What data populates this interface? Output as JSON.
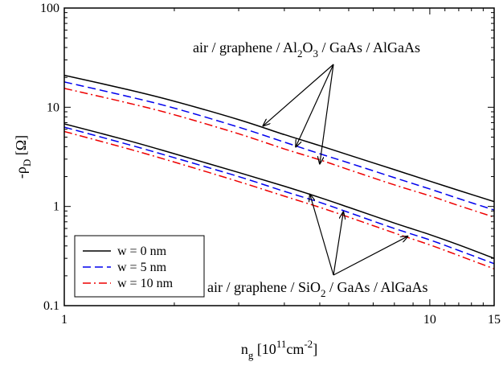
{
  "chart_data": {
    "type": "line",
    "x_scale": "log",
    "y_scale": "log",
    "xlim": [
      1,
      15
    ],
    "ylim": [
      0.1,
      100
    ],
    "x_ticks": [
      {
        "value": 1,
        "label": "1"
      },
      {
        "value": 10,
        "label": "10"
      },
      {
        "value": 15,
        "label": "15"
      }
    ],
    "y_ticks": [
      {
        "value": 0.1,
        "label": "0.1"
      },
      {
        "value": 1,
        "label": "1"
      },
      {
        "value": 10,
        "label": "10"
      },
      {
        "value": 100,
        "label": "100"
      }
    ],
    "xlabel": {
      "base": "n",
      "sub": "g",
      "mid": " [10",
      "sup1": "11",
      "mid2": "cm",
      "sup2": "-2",
      "end": "]"
    },
    "ylabel": {
      "base": "-ρ",
      "sub": "D",
      "end": " [Ω]"
    },
    "grid": false,
    "legend_position": "bottom-left",
    "legend": [
      {
        "label": "w = 0 nm",
        "color": "#000000",
        "dash": "solid"
      },
      {
        "label": "w = 5 nm",
        "color": "#0000ee",
        "dash": "dashed"
      },
      {
        "label": "w = 10 nm",
        "color": "#ee0000",
        "dash": "dashdot"
      }
    ],
    "annotations": [
      {
        "parts": [
          "air / graphene / Al",
          "2",
          "O",
          "3",
          " / GaAs / AlGaAs"
        ],
        "arrow_targets": [
          [
            3.5,
            6.5
          ],
          [
            4.3,
            4.0
          ],
          [
            5.0,
            2.7
          ]
        ]
      },
      {
        "parts": [
          "air / graphene / SiO",
          "2",
          " / GaAs / AlGaAs"
        ],
        "arrow_targets": [
          [
            4.7,
            1.32
          ],
          [
            5.8,
            0.88
          ],
          [
            8.7,
            0.5
          ]
        ]
      }
    ],
    "series": [
      {
        "group": "Al2O3",
        "w": 0,
        "color": "#000000",
        "dash": "solid",
        "x": [
          1,
          1.5,
          2,
          3,
          4,
          5,
          6,
          8,
          10,
          12,
          15
        ],
        "y": [
          21,
          15,
          11.5,
          7.5,
          5.3,
          4.1,
          3.3,
          2.35,
          1.8,
          1.45,
          1.12
        ]
      },
      {
        "group": "Al2O3",
        "w": 5,
        "color": "#0000ee",
        "dash": "dashed",
        "x": [
          1,
          1.5,
          2,
          3,
          4,
          5,
          6,
          8,
          10,
          12,
          15
        ],
        "y": [
          18,
          12.8,
          9.8,
          6.3,
          4.45,
          3.4,
          2.75,
          1.95,
          1.5,
          1.2,
          0.92
        ]
      },
      {
        "group": "Al2O3",
        "w": 10,
        "color": "#ee0000",
        "dash": "dashdot",
        "x": [
          1,
          1.5,
          2,
          3,
          4,
          5,
          6,
          8,
          10,
          12,
          15
        ],
        "y": [
          15.5,
          11,
          8.4,
          5.4,
          3.8,
          2.95,
          2.35,
          1.65,
          1.28,
          1.02,
          0.78
        ]
      },
      {
        "group": "SiO2",
        "w": 0,
        "color": "#000000",
        "dash": "solid",
        "x": [
          1,
          1.5,
          2,
          3,
          4,
          5,
          6,
          8,
          10,
          12,
          15
        ],
        "y": [
          6.8,
          4.6,
          3.4,
          2.2,
          1.6,
          1.23,
          0.98,
          0.68,
          0.52,
          0.41,
          0.3
        ]
      },
      {
        "group": "SiO2",
        "w": 5,
        "color": "#0000ee",
        "dash": "dashed",
        "x": [
          1,
          1.5,
          2,
          3,
          4,
          5,
          6,
          8,
          10,
          12,
          15
        ],
        "y": [
          6.3,
          4.2,
          3.1,
          2.0,
          1.42,
          1.1,
          0.87,
          0.6,
          0.46,
          0.36,
          0.265
        ]
      },
      {
        "group": "SiO2",
        "w": 10,
        "color": "#ee0000",
        "dash": "dashdot",
        "x": [
          1,
          1.5,
          2,
          3,
          4,
          5,
          6,
          8,
          10,
          12,
          15
        ],
        "y": [
          5.7,
          3.8,
          2.8,
          1.78,
          1.27,
          0.98,
          0.78,
          0.54,
          0.41,
          0.32,
          0.235
        ]
      }
    ]
  }
}
